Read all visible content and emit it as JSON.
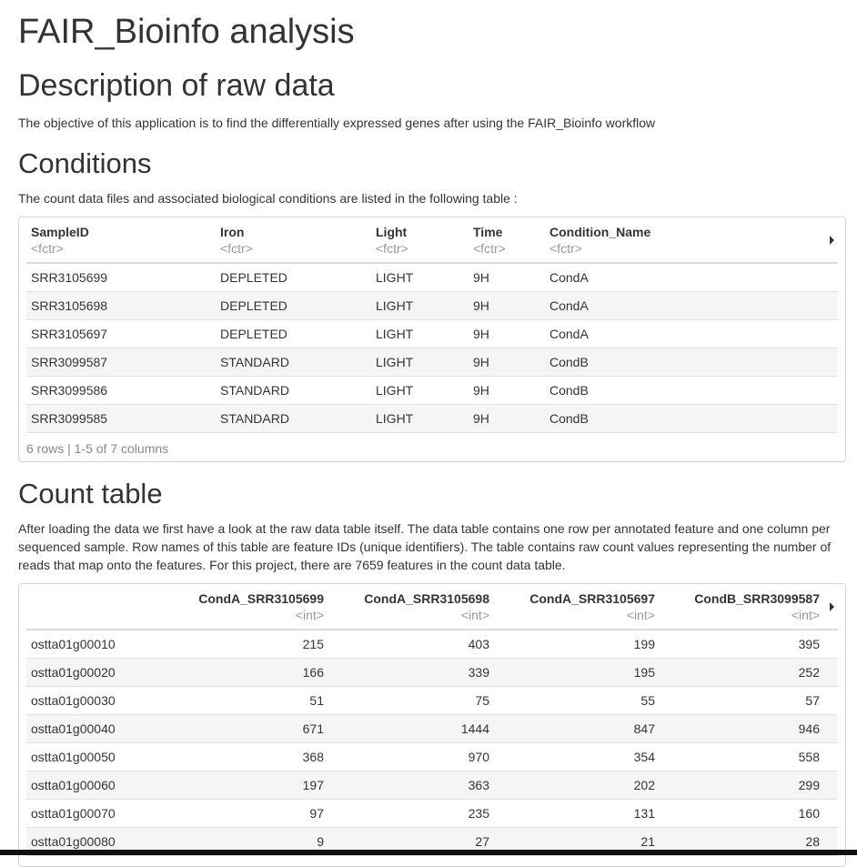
{
  "title": "FAIR_Bioinfo analysis",
  "description": {
    "heading": "Description of raw data",
    "text": "The objective of this application is to find the differentially expressed genes after using the FAIR_Bioinfo workflow"
  },
  "conditions": {
    "heading": "Conditions",
    "text": "The count data files and associated biological conditions are listed in the following table :",
    "columns": [
      {
        "name": "SampleID",
        "type": "<fctr>"
      },
      {
        "name": "Iron",
        "type": "<fctr>"
      },
      {
        "name": "Light",
        "type": "<fctr>"
      },
      {
        "name": "Time",
        "type": "<fctr>"
      },
      {
        "name": "Condition_Name",
        "type": "<fctr>"
      }
    ],
    "rows": [
      [
        "SRR3105699",
        "DEPLETED",
        "LIGHT",
        "9H",
        "CondA"
      ],
      [
        "SRR3105698",
        "DEPLETED",
        "LIGHT",
        "9H",
        "CondA"
      ],
      [
        "SRR3105697",
        "DEPLETED",
        "LIGHT",
        "9H",
        "CondA"
      ],
      [
        "SRR3099587",
        "STANDARD",
        "LIGHT",
        "9H",
        "CondB"
      ],
      [
        "SRR3099586",
        "STANDARD",
        "LIGHT",
        "9H",
        "CondB"
      ],
      [
        "SRR3099585",
        "STANDARD",
        "LIGHT",
        "9H",
        "CondB"
      ]
    ],
    "footer": "6 rows | 1-5 of 7 columns"
  },
  "count_table": {
    "heading": "Count table",
    "text": "After loading the data we first have a look at the raw data table itself. The data table contains one row per annotated feature and one column per sequenced sample. Row names of this table are feature IDs (unique identifiers). The table contains raw count values representing the number of reads that map onto the features. For this project, there are 7659 features in the count data table.",
    "columns": [
      {
        "name": "",
        "type": ""
      },
      {
        "name": "CondA_SRR3105699",
        "type": "<int>"
      },
      {
        "name": "CondA_SRR3105698",
        "type": "<int>"
      },
      {
        "name": "CondA_SRR3105697",
        "type": "<int>"
      },
      {
        "name": "CondB_SRR3099587",
        "type": "<int>"
      }
    ],
    "rows": [
      [
        "ostta01g00010",
        "215",
        "403",
        "199",
        "395"
      ],
      [
        "ostta01g00020",
        "166",
        "339",
        "195",
        "252"
      ],
      [
        "ostta01g00030",
        "51",
        "75",
        "55",
        "57"
      ],
      [
        "ostta01g00040",
        "671",
        "1444",
        "847",
        "946"
      ],
      [
        "ostta01g00050",
        "368",
        "970",
        "354",
        "558"
      ],
      [
        "ostta01g00060",
        "197",
        "363",
        "202",
        "299"
      ],
      [
        "ostta01g00070",
        "97",
        "235",
        "131",
        "160"
      ],
      [
        "ostta01g00080",
        "9",
        "27",
        "21",
        "28"
      ]
    ]
  }
}
